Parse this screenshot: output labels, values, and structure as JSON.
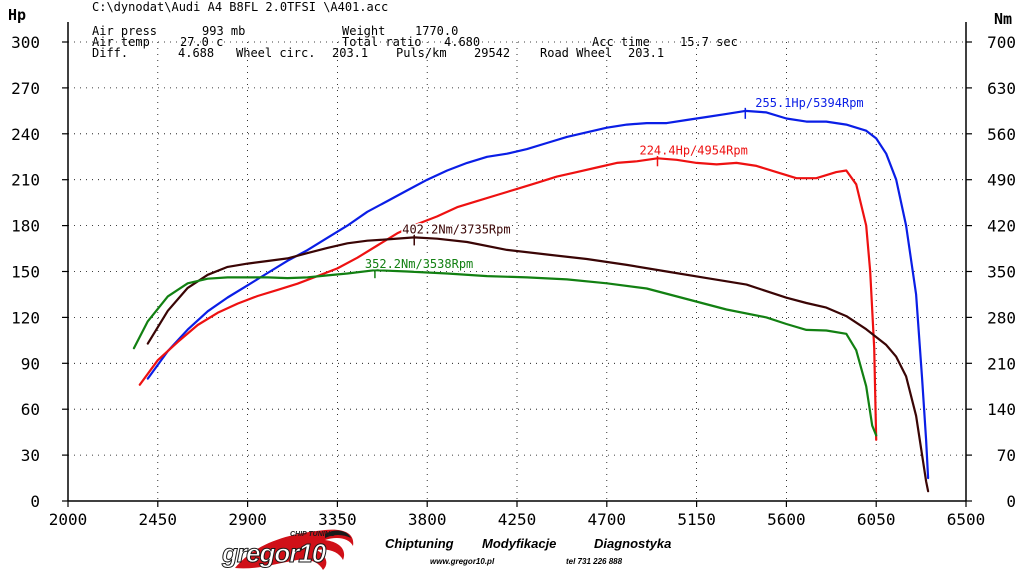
{
  "header": {
    "file_path": "C:\\dynodat\\Audi A4 B8FL 2.0TFSI \\A401.acc",
    "air_press_label": "Air press",
    "air_press_value": "993 mb",
    "air_temp_label": "Air temp",
    "air_temp_value": "27.0 c",
    "diff_label": "Diff.",
    "diff_value": "4.688",
    "weight_label": "Weight",
    "weight_value": "1770.0",
    "total_ratio_label": "Total ratio",
    "total_ratio_value": "4.680",
    "wheel_circ_label": "Wheel circ.",
    "wheel_circ_value": "203.1",
    "puls_label": "Puls/km",
    "puls_value": "29542",
    "road_wheel_label": "Road Wheel",
    "road_wheel_value": "203.1",
    "acc_time_label": "Acc time",
    "acc_time_value": "15.7 sec"
  },
  "footer": {
    "brand": "gregor10",
    "brand_tagline": "CHIP TUNING",
    "services": [
      "Chiptuning",
      "Modyfikacje",
      "Diagnostyka"
    ],
    "website": "www.gregor10.pl",
    "phone": "tel 731 226 888",
    "colors": {
      "brand_red": "#d01018",
      "brand_dark": "#1a1a1a"
    }
  },
  "chart_data": {
    "type": "line",
    "x_ticks": [
      2000,
      2450,
      2900,
      3350,
      3800,
      4250,
      4700,
      5150,
      5600,
      6050,
      6500
    ],
    "xlim": [
      2000,
      6500
    ],
    "left_axis": {
      "label": "Hp",
      "ticks": [
        0,
        30,
        60,
        90,
        120,
        150,
        180,
        210,
        240,
        270,
        300
      ],
      "ylim": [
        0,
        300
      ]
    },
    "right_axis": {
      "label": "Nm",
      "ticks": [
        0,
        70,
        140,
        210,
        280,
        350,
        420,
        490,
        560,
        630,
        700
      ],
      "ylim": [
        0,
        700
      ]
    },
    "grid": "dashed",
    "series": [
      {
        "axis": "left",
        "color": "#0a1ee6",
        "annotation": "255.1Hp/5394Rpm",
        "x": [
          2400,
          2500,
          2600,
          2700,
          2800,
          2900,
          3000,
          3100,
          3200,
          3300,
          3400,
          3500,
          3600,
          3700,
          3800,
          3900,
          4000,
          4100,
          4200,
          4300,
          4400,
          4500,
          4600,
          4700,
          4800,
          4900,
          5000,
          5100,
          5200,
          5300,
          5394,
          5500,
          5600,
          5700,
          5800,
          5900,
          6000,
          6050,
          6100,
          6150,
          6200,
          6250,
          6280,
          6300,
          6310
        ],
        "values": [
          80,
          98,
          112,
          124,
          133,
          141,
          149,
          157,
          164,
          172,
          180,
          189,
          196,
          203,
          210,
          216,
          221,
          225,
          227,
          230,
          234,
          238,
          241,
          244,
          246,
          247,
          247,
          249,
          251,
          253,
          255,
          254,
          250,
          248,
          248,
          246,
          242,
          237,
          227,
          210,
          180,
          135,
          80,
          40,
          15
        ]
      },
      {
        "axis": "left",
        "color": "#ee1111",
        "annotation": "224.4Hp/4954Rpm",
        "x": [
          2360,
          2450,
          2550,
          2650,
          2750,
          2850,
          2950,
          3050,
          3150,
          3250,
          3350,
          3450,
          3550,
          3650,
          3750,
          3850,
          3950,
          4050,
          4150,
          4250,
          4350,
          4450,
          4550,
          4650,
          4750,
          4850,
          4954,
          5050,
          5150,
          5250,
          5350,
          5450,
          5550,
          5650,
          5750,
          5850,
          5900,
          5950,
          6000,
          6020,
          6040,
          6050
        ],
        "values": [
          76,
          92,
          104,
          115,
          123,
          129,
          134,
          138,
          142,
          147,
          152,
          159,
          167,
          175,
          181,
          186,
          192,
          196,
          200,
          204,
          208,
          212,
          215,
          218,
          221,
          222,
          224,
          223,
          221,
          220,
          221,
          219,
          215,
          211,
          211,
          215,
          216,
          207,
          180,
          150,
          100,
          40
        ]
      },
      {
        "axis": "right",
        "color": "#3a0505",
        "annotation": "402.2Nm/3735Rpm",
        "x": [
          2400,
          2500,
          2600,
          2700,
          2800,
          2900,
          3000,
          3100,
          3200,
          3300,
          3400,
          3500,
          3600,
          3735,
          3850,
          4000,
          4200,
          4400,
          4600,
          4800,
          5000,
          5200,
          5400,
          5600,
          5700,
          5800,
          5900,
          6000,
          6100,
          6150,
          6200,
          6250,
          6280,
          6300,
          6310
        ],
        "values": [
          240,
          290,
          325,
          345,
          357,
          362,
          366,
          370,
          378,
          386,
          393,
          397,
          399,
          402,
          400,
          395,
          383,
          376,
          369,
          360,
          350,
          340,
          330,
          310,
          302,
          295,
          282,
          262,
          238,
          220,
          190,
          130,
          70,
          30,
          15
        ]
      },
      {
        "axis": "right",
        "color": "#128012",
        "annotation": "352.2Nm/3538Rpm",
        "x": [
          2330,
          2400,
          2500,
          2600,
          2700,
          2800,
          2900,
          3000,
          3100,
          3200,
          3300,
          3400,
          3538,
          3700,
          3900,
          4100,
          4300,
          4500,
          4700,
          4900,
          5100,
          5300,
          5500,
          5600,
          5700,
          5800,
          5900,
          5950,
          6000,
          6030,
          6050
        ],
        "values": [
          233,
          274,
          312,
          332,
          339,
          341,
          341,
          341,
          340,
          341,
          344,
          347,
          352,
          350,
          347,
          343,
          341,
          338,
          332,
          324,
          308,
          292,
          280,
          270,
          261,
          260,
          255,
          230,
          175,
          115,
          100
        ]
      }
    ]
  }
}
